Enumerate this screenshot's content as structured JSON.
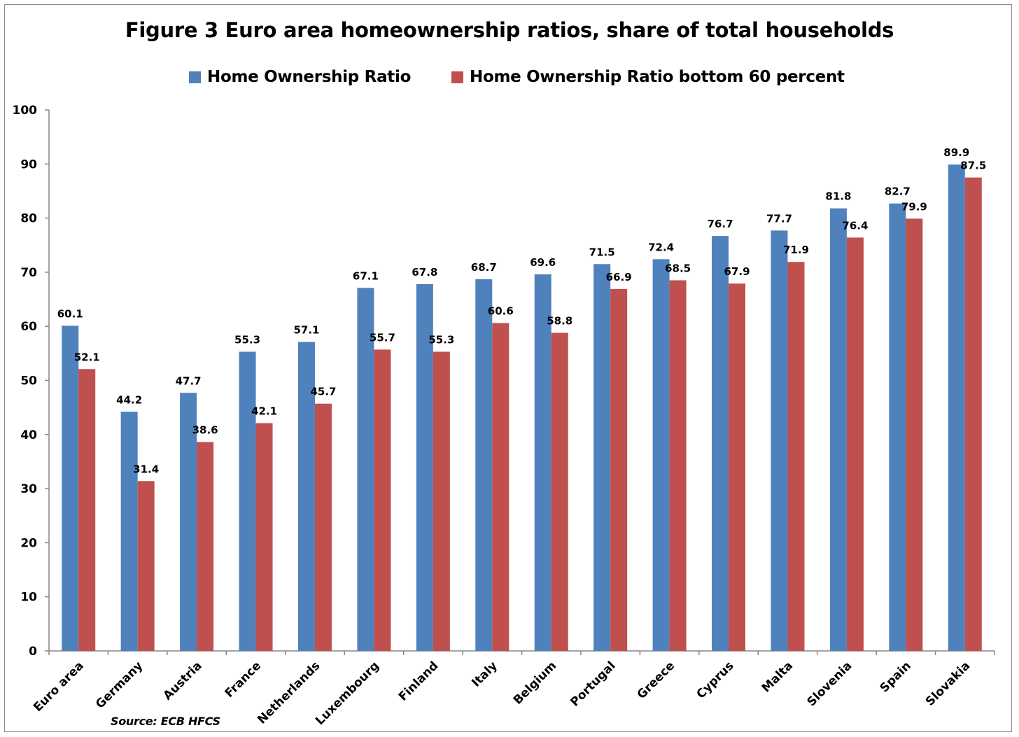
{
  "chart_data": {
    "type": "bar",
    "title": "Figure 3 Euro area homeownership ratios, share of total households",
    "xlabel": "",
    "ylabel": "",
    "ylim": [
      0,
      100
    ],
    "yticks": [
      "0",
      "10",
      "20",
      "30",
      "40",
      "50",
      "60",
      "70",
      "80",
      "90",
      "100"
    ],
    "grid": false,
    "legend_position": "top",
    "categories": [
      "Euro area",
      "Germany",
      "Austria",
      "France",
      "Netherlands",
      "Luxembourg",
      "Finland",
      "Italy",
      "Belgium",
      "Portugal",
      "Greece",
      "Cyprus",
      "Malta",
      "Slovenia",
      "Spain",
      "Slovakia"
    ],
    "series": [
      {
        "name": "Home Ownership Ratio",
        "color": "#4f81bd",
        "values": [
          60.1,
          44.2,
          47.7,
          55.3,
          57.1,
          67.1,
          67.8,
          68.7,
          69.6,
          71.5,
          72.4,
          76.7,
          77.7,
          81.8,
          82.7,
          89.9
        ],
        "labels": [
          "60.1",
          "44.2",
          "47.7",
          "55.3",
          "57.1",
          "67.1",
          "67.8",
          "68.7",
          "69.6",
          "71.5",
          "72.4",
          "76.7",
          "77.7",
          "81.8",
          "82.7",
          "89.9"
        ]
      },
      {
        "name": "Home Ownership Ratio bottom 60 percent",
        "color": "#c0504d",
        "values": [
          52.1,
          31.4,
          38.6,
          42.1,
          45.7,
          55.7,
          55.3,
          60.6,
          58.8,
          66.9,
          68.5,
          67.9,
          71.9,
          76.4,
          79.9,
          87.5
        ],
        "labels": [
          "52.1",
          "31.4",
          "38.6",
          "42.1",
          "45.7",
          "55.7",
          "55.3",
          "60.6",
          "58.8",
          "66.9",
          "68.5",
          "67.9",
          "71.9",
          "76.4",
          "79.9",
          "87.5"
        ]
      }
    ],
    "source": "Source: ECB HFCS"
  }
}
